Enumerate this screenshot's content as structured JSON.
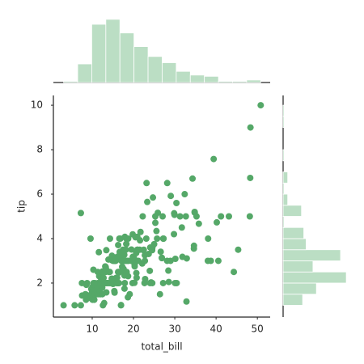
{
  "chart_data": {
    "type": "scatter",
    "xlabel": "total_bill",
    "ylabel": "tip",
    "color": "#55a868",
    "hist_color": "#bbdec4",
    "xlim": [
      0.6,
      53.1
    ],
    "ylim": [
      0.47,
      10.44
    ],
    "xticks": [
      10,
      20,
      30,
      40,
      50
    ],
    "yticks": [
      2,
      4,
      6,
      8,
      10
    ],
    "x": [
      3.07,
      5.75,
      7.25,
      7.25,
      7.51,
      7.56,
      8.35,
      8.51,
      8.52,
      8.58,
      8.77,
      9.55,
      9.6,
      9.68,
      9.78,
      9.94,
      10.07,
      10.07,
      10.29,
      10.33,
      10.34,
      10.34,
      10.51,
      10.59,
      10.63,
      10.65,
      11.02,
      11.17,
      11.24,
      11.35,
      11.38,
      11.59,
      11.61,
      11.69,
      11.87,
      12.02,
      12.03,
      12.16,
      12.26,
      12.43,
      12.46,
      12.48,
      12.54,
      12.6,
      12.66,
      12.69,
      12.74,
      12.76,
      12.9,
      13.0,
      13.03,
      13.13,
      13.16,
      13.27,
      13.28,
      13.37,
      13.39,
      13.42,
      13.42,
      13.51,
      13.81,
      13.94,
      14.07,
      14.15,
      14.26,
      14.31,
      14.48,
      14.52,
      14.73,
      14.78,
      14.83,
      15.01,
      15.04,
      15.06,
      15.36,
      15.38,
      15.42,
      15.48,
      15.53,
      15.69,
      15.77,
      15.81,
      15.95,
      15.98,
      16.0,
      16.04,
      16.21,
      16.27,
      16.29,
      16.31,
      16.4,
      16.45,
      16.47,
      16.49,
      16.58,
      16.66,
      16.82,
      16.93,
      16.97,
      16.99,
      17.07,
      17.26,
      17.29,
      17.46,
      17.47,
      17.51,
      17.59,
      17.78,
      17.81,
      17.82,
      17.89,
      17.92,
      18.04,
      18.15,
      18.24,
      18.28,
      18.29,
      18.35,
      18.43,
      18.64,
      18.69,
      18.71,
      18.78,
      19.08,
      19.44,
      19.49,
      19.65,
      19.77,
      19.81,
      19.82,
      20.08,
      20.23,
      20.27,
      20.29,
      20.45,
      20.49,
      20.65,
      20.69,
      20.76,
      20.9,
      20.92,
      21.01,
      21.16,
      21.5,
      21.58,
      21.7,
      22.12,
      22.23,
      22.42,
      22.49,
      22.67,
      22.75,
      22.76,
      22.82,
      23.1,
      23.17,
      23.33,
      23.68,
      23.95,
      24.01,
      24.06,
      24.27,
      24.52,
      24.55,
      24.59,
      24.71,
      25.0,
      25.28,
      25.29,
      25.56,
      25.71,
      25.89,
      26.41,
      26.59,
      26.86,
      26.88,
      27.05,
      27.18,
      27.2,
      27.28,
      28.15,
      28.17,
      28.44,
      28.55,
      28.97,
      29.03,
      29.8,
      29.85,
      29.93,
      30.06,
      30.14,
      30.4,
      30.46,
      31.27,
      31.71,
      31.85,
      32.4,
      32.68,
      32.83,
      32.9,
      34.3,
      34.63,
      34.65,
      34.81,
      34.83,
      35.26,
      35.83,
      38.01,
      38.07,
      38.73,
      39.42,
      40.17,
      40.55,
      41.19,
      43.11,
      44.3,
      45.35,
      48.17,
      48.27,
      48.33,
      50.81
    ],
    "y": [
      1,
      1,
      1,
      5.15,
      2,
      1.44,
      1.5,
      1.25,
      1.48,
      1.92,
      2,
      1.45,
      4,
      1.32,
      1.73,
      1.56,
      1.83,
      1.25,
      2.6,
      1.67,
      1.66,
      2,
      1.25,
      1.61,
      2,
      1.5,
      1.98,
      1.5,
      1.76,
      2.5,
      2,
      1.5,
      3.39,
      2.31,
      1.63,
      1.97,
      1.5,
      2.2,
      2,
      1.8,
      1.5,
      2.52,
      2.5,
      1,
      2.5,
      2,
      2.01,
      2.23,
      1.1,
      2,
      2,
      2,
      2.75,
      2.5,
      2.72,
      2,
      2.61,
      1.58,
      3.48,
      2,
      2,
      3.06,
      2.5,
      2,
      2.5,
      4,
      2,
      2,
      2.2,
      3.23,
      3.02,
      2.09,
      1.96,
      3,
      1.64,
      3,
      1.57,
      2.02,
      3,
      3,
      2.23,
      3.16,
      2,
      2.03,
      2,
      2.24,
      2,
      2.5,
      3.71,
      2,
      2.5,
      2.47,
      3.23,
      2,
      4,
      3.4,
      4,
      3.07,
      1,
      1.01,
      3,
      2.74,
      2.71,
      2.54,
      3.5,
      3,
      2.64,
      3.27,
      2.34,
      1.75,
      2,
      4.08,
      3,
      3.5,
      3.76,
      4,
      3.76,
      2.5,
      3,
      1.36,
      2.31,
      4,
      3,
      1.5,
      3,
      3.51,
      3,
      2,
      4.19,
      3.18,
      3.15,
      2.01,
      2.83,
      2.75,
      3,
      4.06,
      3.35,
      2.45,
      2.24,
      3.5,
      4.08,
      3.5,
      3,
      3.5,
      3.92,
      4.3,
      2.88,
      5,
      3.48,
      3.5,
      2,
      3.25,
      3,
      2.18,
      4,
      6.5,
      5.65,
      3.31,
      2.55,
      2,
      3.6,
      2.03,
      3.48,
      2,
      3.61,
      5.85,
      3.75,
      5,
      4.71,
      4.34,
      4,
      5.16,
      1.5,
      3.41,
      3.14,
      3.12,
      5,
      2,
      4,
      4,
      3,
      6.5,
      2.56,
      2.05,
      3,
      5.92,
      4.2,
      5.14,
      5.07,
      2,
      3.09,
      5.6,
      2,
      5,
      4.5,
      3.18,
      6,
      5,
      1.17,
      3.11,
      6.7,
      3.55,
      3.68,
      5.2,
      5.17,
      5,
      4.67,
      3,
      4,
      3,
      7.58,
      4.73,
      3,
      5,
      5,
      2.5,
      3.5,
      5,
      6.73,
      9,
      10
    ],
    "x_hist": {
      "bins": [
        3.07,
        6.48,
        9.89,
        13.3,
        16.71,
        20.12,
        23.53,
        26.94,
        30.35,
        33.76,
        37.17,
        40.58,
        43.99,
        47.4,
        50.81
      ],
      "counts": [
        1,
        15,
        47,
        51,
        40,
        29,
        21,
        16,
        9,
        6,
        5,
        1,
        1,
        2
      ]
    },
    "y_hist": {
      "bins": [
        1,
        1.5,
        2,
        2.5,
        3,
        3.5,
        4,
        4.5,
        5,
        5.5,
        6,
        6.5,
        7,
        7.5,
        8,
        8.5,
        9,
        9.5,
        10
      ],
      "counts": [
        17,
        29,
        55,
        26,
        50,
        20,
        18,
        1,
        16,
        4,
        1,
        4,
        0,
        1,
        0,
        0,
        1,
        1
      ]
    }
  }
}
